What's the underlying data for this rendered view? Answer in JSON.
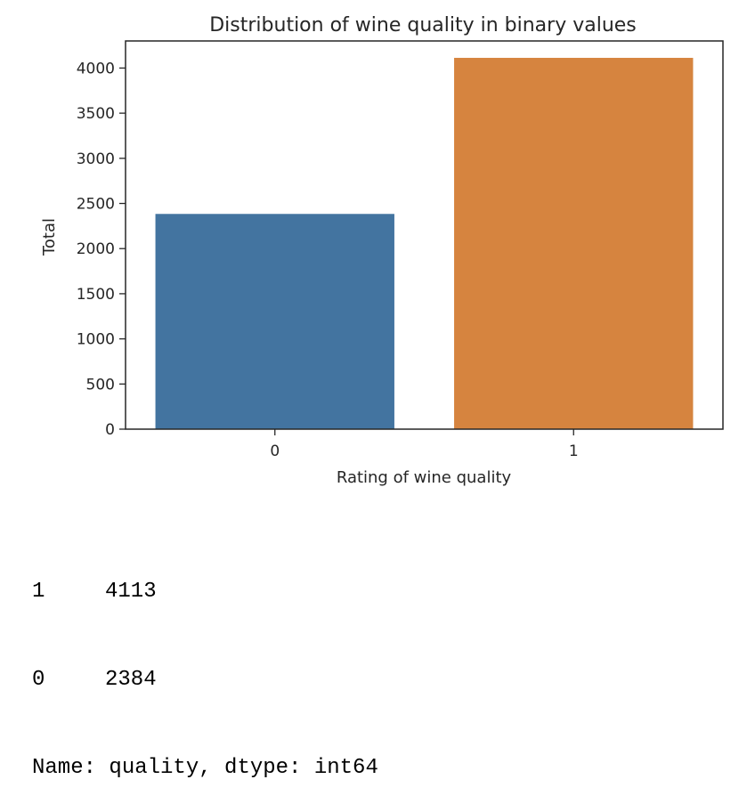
{
  "chart_data": {
    "type": "bar",
    "title": "Distribution of wine quality in binary values",
    "xlabel": "Rating of wine quality",
    "ylabel": "Total",
    "categories": [
      "0",
      "1"
    ],
    "values": [
      2384,
      4113
    ],
    "colors": [
      "#4374a0",
      "#d6843f"
    ],
    "ylim": [
      0,
      4300
    ],
    "yticks": [
      0,
      500,
      1000,
      1500,
      2000,
      2500,
      3000,
      3500,
      4000
    ],
    "grid": false,
    "legend": "none"
  },
  "output": {
    "rows": [
      {
        "index": "1",
        "value": "4113"
      },
      {
        "index": "0",
        "value": "2384"
      }
    ],
    "footer": "Name: quality, dtype: int64"
  }
}
